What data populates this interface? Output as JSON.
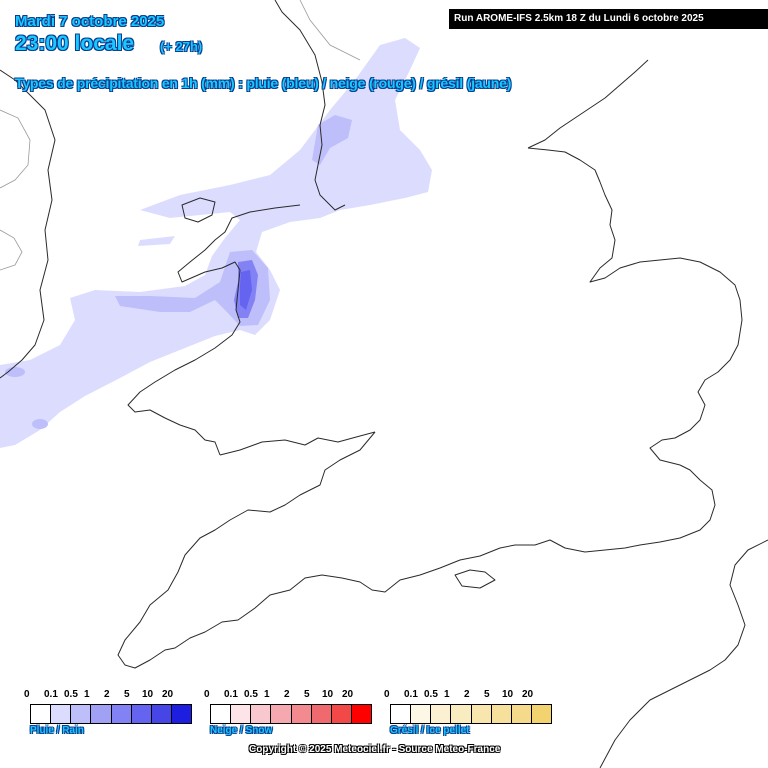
{
  "header": {
    "date": "Mardi 7 octobre 2025",
    "time": "23:00 locale",
    "lead": "(+ 27h)",
    "legend_title": "Types de précipitation en 1h (mm) : pluie (bleu) / neige (rouge) / grésil (jaune)"
  },
  "run_banner": "Run AROME-IFS 2.5km 18 Z du Lundi 6 octobre 2025",
  "scales": [
    {
      "label": "Pluie / Rain",
      "ticks": [
        "0",
        "0.1",
        "0.5",
        "1",
        "2",
        "5",
        "10",
        "20"
      ],
      "colors": [
        "#ffffff",
        "#dcdcff",
        "#bebefa",
        "#a0a0f5",
        "#8282f5",
        "#6464f0",
        "#4646e6",
        "#1e1ee1"
      ]
    },
    {
      "label": "Neige / Snow",
      "ticks": [
        "0",
        "0.1",
        "0.5",
        "1",
        "2",
        "5",
        "10",
        "20"
      ],
      "colors": [
        "#ffffff",
        "#fce4e8",
        "#f9c8cf",
        "#f5a8b0",
        "#f28a8f",
        "#ef6a6e",
        "#f24848",
        "#ff0000"
      ]
    },
    {
      "label": "Grésil / Ice pellet",
      "ticks": [
        "0",
        "0.1",
        "0.5",
        "1",
        "2",
        "5",
        "10",
        "20"
      ],
      "colors": [
        "#ffffff",
        "#fdf8e6",
        "#fbf1d2",
        "#f9ecc0",
        "#f8e6ae",
        "#f6e09c",
        "#f4da8a",
        "#f2d370"
      ]
    }
  ],
  "copyright": "Copyright © 2025 Meteociel.fr - Source Meteo-France"
}
